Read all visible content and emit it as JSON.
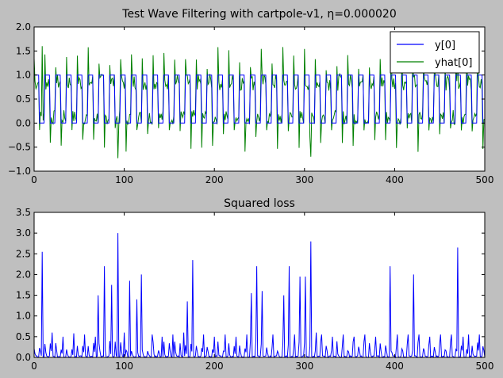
{
  "colors": {
    "background": "#bfbfbf",
    "plot_bg": "#ffffff",
    "y_series": "#0000ff",
    "yhat_series": "#008000",
    "loss_series": "#0000ff"
  },
  "chart_data": [
    {
      "type": "line",
      "title": "Test Wave Filtering with cartpole-v1, η=0.000020",
      "xlabel": "",
      "ylabel": "",
      "xlim": [
        0,
        500
      ],
      "ylim": [
        -1.0,
        2.0
      ],
      "xticks": [
        0,
        100,
        200,
        300,
        400,
        500
      ],
      "yticks": [
        -1.0,
        -0.5,
        0.0,
        0.5,
        1.0,
        1.5,
        2.0
      ],
      "xtick_labels": [
        "0",
        "100",
        "200",
        "300",
        "400",
        "500"
      ],
      "ytick_labels": [
        "−1.0",
        "−0.5",
        "0.0",
        "0.5",
        "1.0",
        "1.5",
        "2.0"
      ],
      "grid": false,
      "legend": "top-right",
      "series": [
        {
          "name": "y[0]",
          "color": "#0000ff",
          "pattern": "square wave 0/1, period ~12 steps, duty ~0.5, x 0 to 500"
        },
        {
          "name": "yhat[0]",
          "color": "#008000",
          "pattern": "noisy tracking of y[0], range approx -0.75 to 1.6, x 0 to 500"
        }
      ]
    },
    {
      "type": "line",
      "title": "Squared loss",
      "xlabel": "",
      "ylabel": "",
      "xlim": [
        0,
        500
      ],
      "ylim": [
        0.0,
        3.5
      ],
      "xticks": [
        0,
        100,
        200,
        300,
        400,
        500
      ],
      "yticks": [
        0.0,
        0.5,
        1.0,
        1.5,
        2.0,
        2.5,
        3.0,
        3.5
      ],
      "xtick_labels": [
        "0",
        "100",
        "200",
        "300",
        "400",
        "500"
      ],
      "ytick_labels": [
        "0.0",
        "0.5",
        "1.0",
        "1.5",
        "2.0",
        "2.5",
        "3.0",
        "3.5"
      ],
      "grid": false,
      "series": [
        {
          "name": "",
          "color": "#0000ff",
          "peaks": [
            {
              "x": 9,
              "y": 2.55
            },
            {
              "x": 20,
              "y": 0.6
            },
            {
              "x": 32,
              "y": 0.5
            },
            {
              "x": 44,
              "y": 0.58
            },
            {
              "x": 56,
              "y": 0.55
            },
            {
              "x": 68,
              "y": 0.5
            },
            {
              "x": 71,
              "y": 1.5
            },
            {
              "x": 78,
              "y": 2.2
            },
            {
              "x": 86,
              "y": 1.75
            },
            {
              "x": 93,
              "y": 3.0
            },
            {
              "x": 100,
              "y": 0.6
            },
            {
              "x": 106,
              "y": 1.85
            },
            {
              "x": 114,
              "y": 1.4
            },
            {
              "x": 119,
              "y": 2.0
            },
            {
              "x": 131,
              "y": 0.55
            },
            {
              "x": 142,
              "y": 0.5
            },
            {
              "x": 154,
              "y": 0.55
            },
            {
              "x": 166,
              "y": 0.6
            },
            {
              "x": 170,
              "y": 1.35
            },
            {
              "x": 176,
              "y": 2.35
            },
            {
              "x": 188,
              "y": 0.55
            },
            {
              "x": 200,
              "y": 0.5
            },
            {
              "x": 212,
              "y": 0.55
            },
            {
              "x": 224,
              "y": 0.5
            },
            {
              "x": 236,
              "y": 0.55
            },
            {
              "x": 241,
              "y": 1.55
            },
            {
              "x": 247,
              "y": 2.2
            },
            {
              "x": 253,
              "y": 1.6
            },
            {
              "x": 265,
              "y": 0.55
            },
            {
              "x": 277,
              "y": 1.5
            },
            {
              "x": 283,
              "y": 2.2
            },
            {
              "x": 289,
              "y": 0.55
            },
            {
              "x": 295,
              "y": 1.95
            },
            {
              "x": 301,
              "y": 1.95
            },
            {
              "x": 307,
              "y": 2.8
            },
            {
              "x": 313,
              "y": 0.6
            },
            {
              "x": 319,
              "y": 0.55
            },
            {
              "x": 331,
              "y": 0.5
            },
            {
              "x": 343,
              "y": 0.55
            },
            {
              "x": 355,
              "y": 0.5
            },
            {
              "x": 367,
              "y": 0.55
            },
            {
              "x": 379,
              "y": 0.5
            },
            {
              "x": 395,
              "y": 2.2
            },
            {
              "x": 403,
              "y": 0.55
            },
            {
              "x": 415,
              "y": 0.55
            },
            {
              "x": 421,
              "y": 2.0
            },
            {
              "x": 427,
              "y": 0.55
            },
            {
              "x": 439,
              "y": 0.5
            },
            {
              "x": 451,
              "y": 0.55
            },
            {
              "x": 463,
              "y": 0.55
            },
            {
              "x": 470,
              "y": 2.65
            },
            {
              "x": 476,
              "y": 0.5
            },
            {
              "x": 482,
              "y": 0.55
            },
            {
              "x": 494,
              "y": 0.55
            }
          ]
        }
      ]
    }
  ]
}
